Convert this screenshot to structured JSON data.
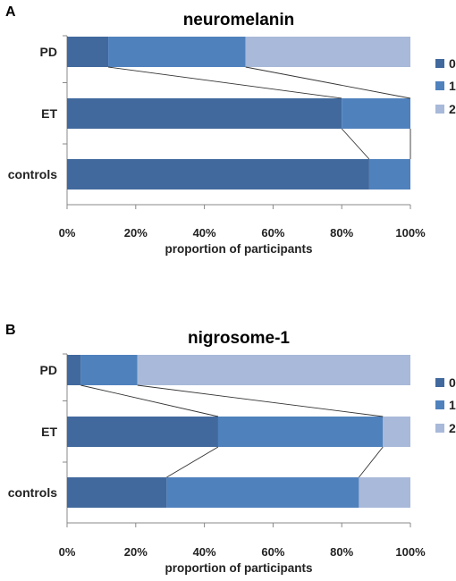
{
  "chart_data": [
    {
      "panel_label": "A",
      "type": "bar",
      "orientation": "horizontal",
      "stacked": true,
      "title": "neuromelanin",
      "xlabel": "proportion of participants",
      "ylabel": "",
      "xlim": [
        0,
        100
      ],
      "x_ticks": [
        "0%",
        "20%",
        "40%",
        "60%",
        "80%",
        "100%"
      ],
      "categories": [
        "PD",
        "ET",
        "controls"
      ],
      "series": [
        {
          "name": "0",
          "values": [
            12,
            80,
            88
          ],
          "color": "#41699d"
        },
        {
          "name": "1",
          "values": [
            40,
            20,
            12
          ],
          "color": "#4f81bd"
        },
        {
          "name": "2",
          "values": [
            48,
            0,
            0
          ],
          "color": "#a8b9d9"
        }
      ],
      "legend": "right",
      "grid": false,
      "series_lines": true
    },
    {
      "panel_label": "B",
      "type": "bar",
      "orientation": "horizontal",
      "stacked": true,
      "title": "nigrosome-1",
      "xlabel": "proportion of participants",
      "ylabel": "",
      "xlim": [
        0,
        100
      ],
      "x_ticks": [
        "0%",
        "20%",
        "40%",
        "60%",
        "80%",
        "100%"
      ],
      "categories": [
        "PD",
        "ET",
        "controls"
      ],
      "series": [
        {
          "name": "0",
          "values": [
            4,
            44,
            29
          ],
          "color": "#41699d"
        },
        {
          "name": "1",
          "values": [
            16.5,
            48,
            56
          ],
          "color": "#4f81bd"
        },
        {
          "name": "2",
          "values": [
            79.5,
            8,
            15
          ],
          "color": "#a8b9d9"
        }
      ],
      "legend": "right",
      "grid": false,
      "series_lines": true
    }
  ]
}
